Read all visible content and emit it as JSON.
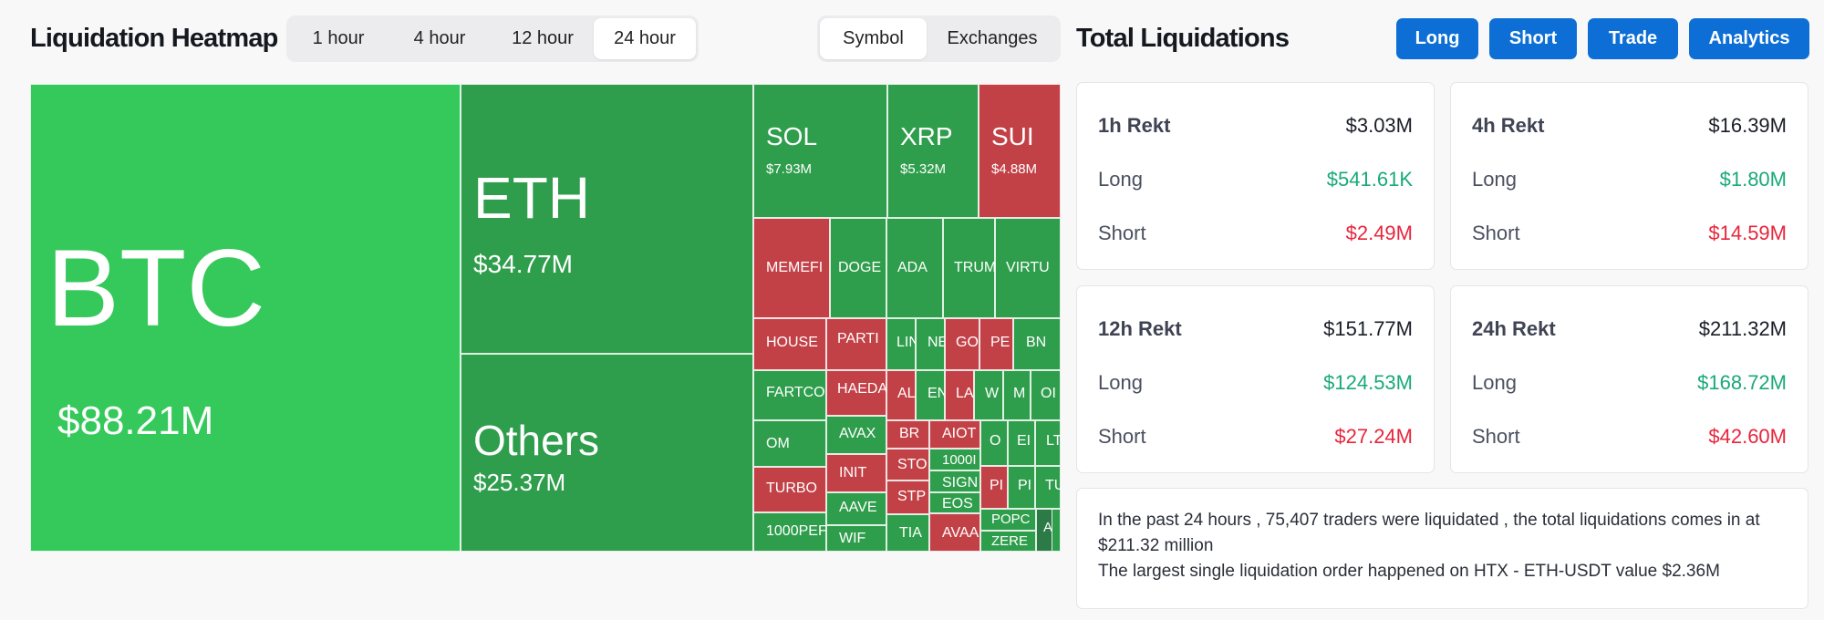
{
  "heatmap": {
    "title": "Liquidation Heatmap",
    "time_tabs": [
      {
        "label": "1 hour",
        "active": false
      },
      {
        "label": "4 hour",
        "active": false
      },
      {
        "label": "12 hour",
        "active": false
      },
      {
        "label": "24 hour",
        "active": true
      }
    ],
    "view_tabs": [
      {
        "label": "Symbol",
        "active": true
      },
      {
        "label": "Exchanges",
        "active": false
      }
    ],
    "colors": {
      "bright_green": "#34c95a",
      "green": "#2f9e4c",
      "red": "#c24147",
      "dark_green": "#2c7a46"
    },
    "tiles": [
      {
        "symbol": "BTC",
        "value": "$88.21M",
        "color": "bright_green"
      },
      {
        "symbol": "ETH",
        "value": "$34.77M",
        "color": "green"
      },
      {
        "symbol": "Others",
        "value": "$25.37M",
        "color": "green"
      },
      {
        "symbol": "SOL",
        "value": "$7.93M",
        "color": "green"
      },
      {
        "symbol": "XRP",
        "value": "$5.32M",
        "color": "green"
      },
      {
        "symbol": "SUI",
        "value": "$4.88M",
        "color": "red"
      },
      {
        "symbol": "MEMEFI",
        "color": "red"
      },
      {
        "symbol": "DOGE",
        "color": "green"
      },
      {
        "symbol": "ADA",
        "color": "green"
      },
      {
        "symbol": "TRUM",
        "color": "green"
      },
      {
        "symbol": "VIRTU",
        "color": "green"
      },
      {
        "symbol": "HOUSE",
        "color": "red"
      },
      {
        "symbol": "PARTI",
        "color": "red"
      },
      {
        "symbol": "LIN",
        "color": "green"
      },
      {
        "symbol": "NE",
        "color": "green"
      },
      {
        "symbol": "GO",
        "color": "red"
      },
      {
        "symbol": "PE",
        "color": "red"
      },
      {
        "symbol": "BN",
        "color": "green"
      },
      {
        "symbol": "FARTCO",
        "color": "green"
      },
      {
        "symbol": "HAEDA",
        "color": "red"
      },
      {
        "symbol": "AL",
        "color": "red"
      },
      {
        "symbol": "EN",
        "color": "green"
      },
      {
        "symbol": "LA",
        "color": "red"
      },
      {
        "symbol": "W",
        "color": "green"
      },
      {
        "symbol": "M",
        "color": "green"
      },
      {
        "symbol": "OI",
        "color": "green"
      },
      {
        "symbol": "AVAX",
        "color": "green"
      },
      {
        "symbol": "OM",
        "color": "green"
      },
      {
        "symbol": "BR",
        "color": "red"
      },
      {
        "symbol": "AIOT",
        "color": "red"
      },
      {
        "symbol": "O",
        "color": "green"
      },
      {
        "symbol": "EI",
        "color": "green"
      },
      {
        "symbol": "LT",
        "color": "green"
      },
      {
        "symbol": "INIT",
        "color": "red"
      },
      {
        "symbol": "1000I",
        "color": "green"
      },
      {
        "symbol": "STO",
        "color": "red"
      },
      {
        "symbol": "SIGN",
        "color": "green"
      },
      {
        "symbol": "PI",
        "color": "red"
      },
      {
        "symbol": "PI",
        "color": "green"
      },
      {
        "symbol": "TU",
        "color": "green"
      },
      {
        "symbol": "TURBO",
        "color": "red"
      },
      {
        "symbol": "AAVE",
        "color": "green"
      },
      {
        "symbol": "STP",
        "color": "red"
      },
      {
        "symbol": "EOS",
        "color": "green"
      },
      {
        "symbol": "POPC",
        "color": "green"
      },
      {
        "symbol": "AT",
        "color": "dark_green"
      },
      {
        "symbol": "1000PEF",
        "color": "green"
      },
      {
        "symbol": "WIF",
        "color": "green"
      },
      {
        "symbol": "TIA",
        "color": "green"
      },
      {
        "symbol": "AVAA",
        "color": "red"
      },
      {
        "symbol": "ZERE",
        "color": "green"
      },
      {
        "symbol": "",
        "color": "green"
      }
    ]
  },
  "totals": {
    "title": "Total Liquidations",
    "nav_buttons": [
      "Long",
      "Short",
      "Trade",
      "Analytics"
    ],
    "cards": [
      {
        "title": "1h Rekt",
        "total": "$3.03M",
        "long_label": "Long",
        "long": "$541.61K",
        "short_label": "Short",
        "short": "$2.49M"
      },
      {
        "title": "4h Rekt",
        "total": "$16.39M",
        "long_label": "Long",
        "long": "$1.80M",
        "short_label": "Short",
        "short": "$14.59M"
      },
      {
        "title": "12h Rekt",
        "total": "$151.77M",
        "long_label": "Long",
        "long": "$124.53M",
        "short_label": "Short",
        "short": "$27.24M"
      },
      {
        "title": "24h Rekt",
        "total": "$211.32M",
        "long_label": "Long",
        "long": "$168.72M",
        "short_label": "Short",
        "short": "$42.60M"
      }
    ],
    "summary_line1": "In the past 24 hours , 75,407 traders were liquidated , the total liquidations comes in at $211.32 million",
    "summary_line2": "The largest single liquidation order happened on HTX - ETH-USDT value $2.36M",
    "colors": {
      "button": "#0d6fd6",
      "long": "#19a97b",
      "short": "#e8253b"
    }
  }
}
